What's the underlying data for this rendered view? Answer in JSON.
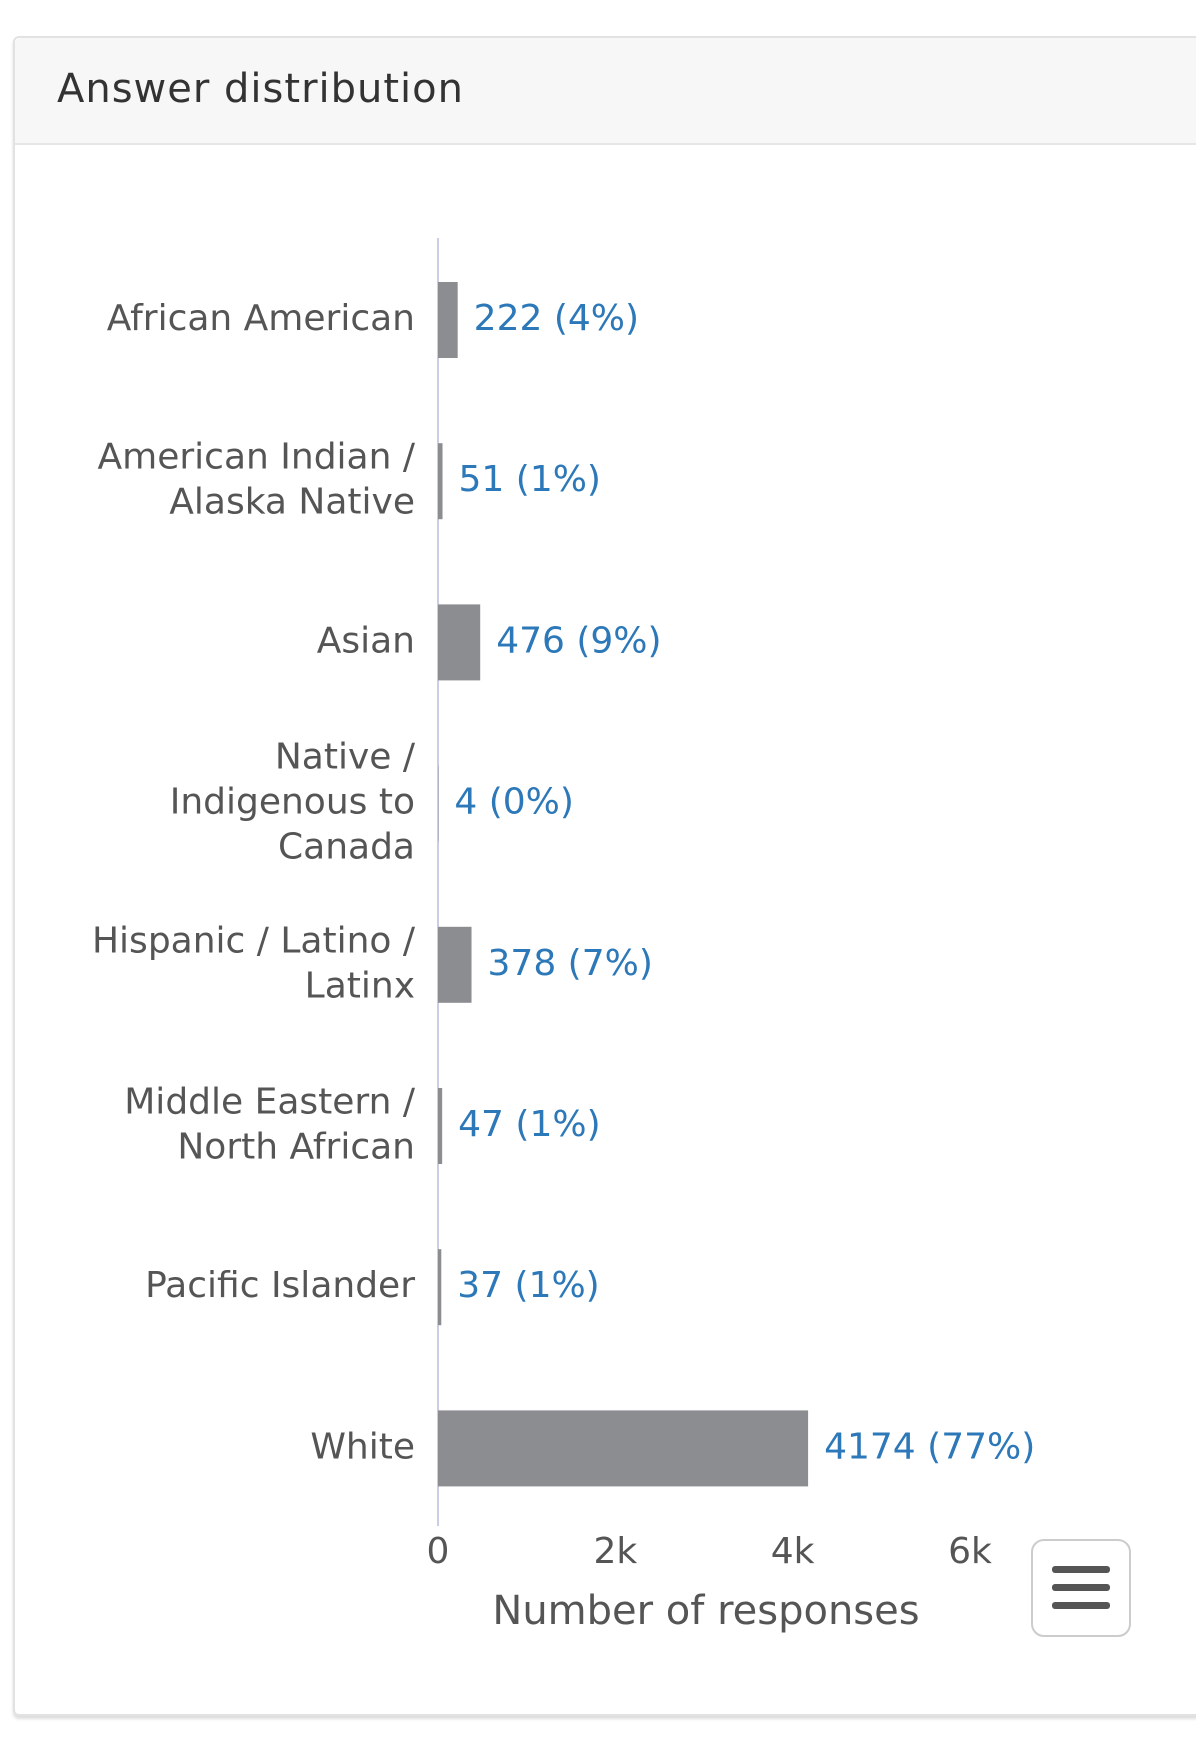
{
  "header": {
    "title": "Answer distribution"
  },
  "chart_data": {
    "type": "hbar",
    "categories": [
      "African American",
      "American Indian / Alaska Native",
      "Asian",
      "Native / Indigenous to Canada",
      "Hispanic / Latino / Latinx",
      "Middle Eastern / North African",
      "Pacific Islander",
      "White"
    ],
    "values": [
      222,
      51,
      476,
      4,
      378,
      47,
      37,
      4174
    ],
    "value_labels": [
      "222 (4%)",
      "51 (1%)",
      "476 (9%)",
      "4 (0%)",
      "378 (7%)",
      "47 (1%)",
      "37 (1%)",
      "4174 (77%)"
    ],
    "color": "#8c8d91",
    "label_color": "#2c78b8",
    "xlabel": "Number of responses",
    "xlim": [
      0,
      6000
    ],
    "xticks": [
      0,
      {
        "value": 2000,
        "label": "2k"
      },
      {
        "value": 4000,
        "label": "4k"
      },
      {
        "value": 6000,
        "label": "6k"
      }
    ],
    "grid": false
  }
}
